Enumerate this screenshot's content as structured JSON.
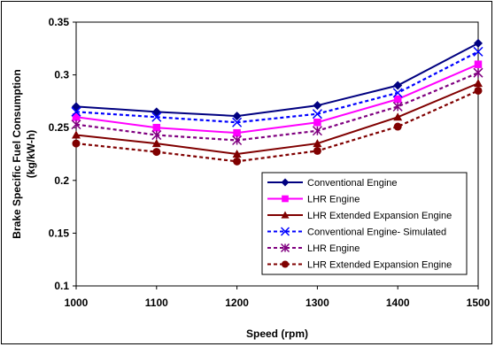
{
  "chart_data": {
    "type": "line",
    "x": [
      1000,
      1100,
      1200,
      1300,
      1400,
      1500
    ],
    "xlabel": "Speed (rpm)",
    "ylabel_line1": "Brake Specific Fuel Consumption",
    "ylabel_line2": "(kg/kW-h)",
    "xlim": [
      1000,
      1500
    ],
    "ylim": [
      0.1,
      0.35
    ],
    "x_ticks": [
      "1000",
      "1100",
      "1200",
      "1300",
      "1400",
      "1500"
    ],
    "y_ticks": [
      "0.1",
      "0.15",
      "0.2",
      "0.25",
      "0.3",
      "0.35"
    ],
    "grid": "none",
    "legend_position": "bottom-right",
    "series": [
      {
        "name": "Conventional Engine",
        "values": [
          0.27,
          0.265,
          0.261,
          0.271,
          0.29,
          0.33
        ],
        "color": "#000080",
        "dash": "solid",
        "marker": "diamond"
      },
      {
        "name": "LHR Engine",
        "values": [
          0.26,
          0.25,
          0.245,
          0.255,
          0.277,
          0.31
        ],
        "color": "#ff00ff",
        "dash": "solid",
        "marker": "square"
      },
      {
        "name": "LHR Extended Expansion Engine",
        "values": [
          0.243,
          0.235,
          0.225,
          0.235,
          0.26,
          0.292
        ],
        "color": "#800000",
        "dash": "solid",
        "marker": "triangle"
      },
      {
        "name": "Conventional Engine- Simulated",
        "values": [
          0.265,
          0.26,
          0.255,
          0.263,
          0.283,
          0.322
        ],
        "color": "#0000ff",
        "dash": "dashed",
        "marker": "x"
      },
      {
        "name": "LHR Engine",
        "values": [
          0.253,
          0.243,
          0.238,
          0.247,
          0.27,
          0.302
        ],
        "color": "#800080",
        "dash": "dashed",
        "marker": "star"
      },
      {
        "name": "LHR Extended Expansion Engine",
        "values": [
          0.235,
          0.227,
          0.218,
          0.228,
          0.251,
          0.285
        ],
        "color": "#800000",
        "dash": "dashed",
        "marker": "circle"
      }
    ]
  }
}
